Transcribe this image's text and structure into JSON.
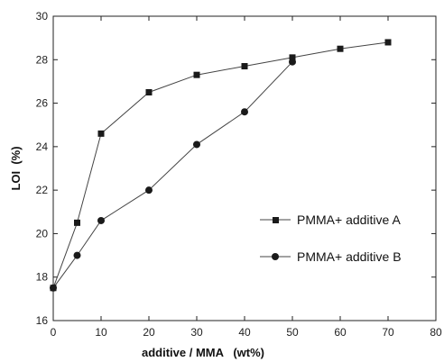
{
  "chart_data": {
    "type": "line",
    "xlabel": "additive / MMA   (wt%)",
    "ylabel": "LOI  (%)",
    "xlim": [
      0,
      80
    ],
    "ylim": [
      16,
      30
    ],
    "xticks": [
      0,
      10,
      20,
      30,
      40,
      50,
      60,
      70,
      80
    ],
    "yticks": [
      16,
      18,
      20,
      22,
      24,
      26,
      28,
      30
    ],
    "grid": false,
    "legend_position": "right",
    "series": [
      {
        "name": "PMMA+ additive A",
        "marker": "square",
        "color": "#1a1a1a",
        "x": [
          0,
          5,
          10,
          20,
          30,
          40,
          50,
          60,
          70
        ],
        "y": [
          17.5,
          20.5,
          24.6,
          26.5,
          27.3,
          27.7,
          28.1,
          28.5,
          28.8
        ]
      },
      {
        "name": "PMMA+ additive B",
        "marker": "circle",
        "color": "#1a1a1a",
        "x": [
          0,
          5,
          10,
          20,
          30,
          40,
          50
        ],
        "y": [
          17.5,
          19.0,
          20.6,
          22.0,
          24.1,
          25.6,
          27.9
        ]
      }
    ]
  }
}
